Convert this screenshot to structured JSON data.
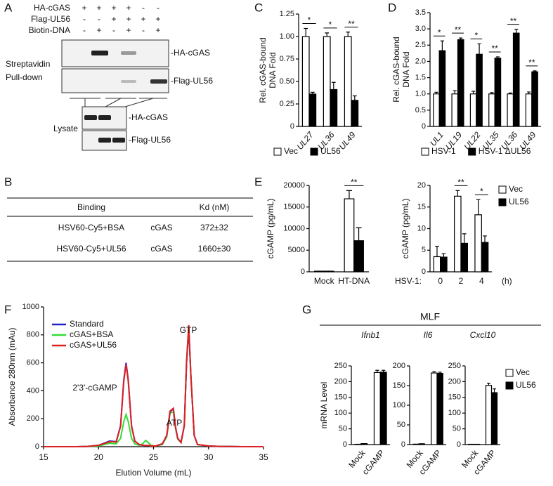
{
  "panel_labels": [
    "A",
    "B",
    "C",
    "D",
    "E",
    "F",
    "G"
  ],
  "blot": {
    "rows": [
      {
        "label": "HA-cGAS",
        "signs": [
          "+",
          "+",
          "+",
          "+",
          "-",
          "-"
        ]
      },
      {
        "label": "Flag-UL56",
        "signs": [
          "-",
          "-",
          "+",
          "+",
          "+",
          "+"
        ]
      },
      {
        "label": "Biotin-DNA",
        "signs": [
          "-",
          "+",
          "-",
          "+",
          "-",
          "+"
        ]
      }
    ],
    "pulldown_label": [
      "Streptavidin",
      "Pull-down"
    ],
    "pulldown_bands": [
      "-HA-cGAS",
      "-Flag-UL56"
    ],
    "lysate_label": "Lysate",
    "lysate_bands": [
      "-HA-cGAS",
      "-Flag-UL56"
    ]
  },
  "table": {
    "header": [
      "Binding",
      "Kd (nM)"
    ],
    "rows": [
      [
        "HSV60-Cy5+BSA",
        "cGAS",
        "372±32"
      ],
      [
        "HSV60-Cy5+UL56",
        "cGAS",
        "1660±30"
      ]
    ]
  },
  "panel_g_title": "MLF",
  "chart_data": [
    {
      "type": "bar",
      "ylabel": [
        "Rel. cGAS-bound",
        "DNA Fold"
      ],
      "italic_categories": true,
      "legend": "bottom",
      "categories": [
        "UL27",
        "UL36",
        "UL49"
      ],
      "series": [
        {
          "name": "Vec",
          "color": "#ffffff",
          "values": [
            1.0,
            1.0,
            1.0
          ],
          "errors": [
            0.09,
            0.04,
            0.05
          ]
        },
        {
          "name": "UL56",
          "color": "#000000",
          "values": [
            0.36,
            0.41,
            0.29
          ],
          "errors": [
            0.02,
            0.08,
            0.05
          ]
        }
      ],
      "significance": [
        "*",
        "*",
        "**"
      ],
      "ylim": [
        0,
        1.25
      ],
      "yticks": [
        0,
        0.25,
        {
          "value": 0.5,
          "label": "0.50"
        },
        0.75,
        {
          "value": 1,
          "label": "1.00"
        },
        1.25
      ]
    },
    {
      "type": "bar",
      "ylabel": [
        "Rel. cGAS-bound",
        "DNA Fold"
      ],
      "italic_categories": true,
      "legend": "bottom",
      "categories": [
        "UL1",
        "UL19",
        "UL22",
        "UL35",
        "UL36",
        "UL49"
      ],
      "series": [
        {
          "name": "HSV-1",
          "color": "#ffffff",
          "values": [
            1.0,
            1.0,
            1.0,
            1.0,
            1.0,
            1.0
          ],
          "errors": [
            0.05,
            0.1,
            0.08,
            0.04,
            0.03,
            0.06
          ]
        },
        {
          "name": "HSV-1 ΔUL56",
          "color": "#000000",
          "values": [
            2.33,
            2.67,
            2.22,
            2.1,
            2.87,
            1.68
          ],
          "errors": [
            0.3,
            0.05,
            0.32,
            0.04,
            0.12,
            0.03
          ]
        }
      ],
      "significance": [
        "*",
        "**",
        "*",
        "**",
        "**",
        "**"
      ],
      "ylim": [
        0,
        3.5
      ],
      "yticks": [
        0,
        0.5,
        {
          "value": 1,
          "label": "1.0"
        },
        1.5,
        {
          "value": 2,
          "label": "2.0"
        },
        2.5,
        {
          "value": 3,
          "label": "3.0"
        },
        3.5
      ]
    },
    {
      "type": "bar",
      "ylabel": [
        "cGAMP (pg/mL)"
      ],
      "categories": [
        "Mock",
        "HT-DNA"
      ],
      "series": [
        {
          "color": "#ffffff",
          "values": [
            150,
            16900
          ],
          "errors": [
            0,
            1900
          ]
        },
        {
          "color": "#000000",
          "values": [
            150,
            7200
          ],
          "errors": [
            0,
            3000
          ]
        }
      ],
      "significance": [
        null,
        "**"
      ],
      "ylim": [
        0,
        20000
      ],
      "yticks": [
        0,
        5000,
        10000,
        15000,
        20000
      ]
    },
    {
      "type": "bar",
      "ylabel": [
        "cGAMP (pg/mL)"
      ],
      "legend": "right",
      "x_prefix_label": "HSV-1:",
      "x_unit_label": "(h)",
      "categories": [
        "0",
        "2",
        "4"
      ],
      "series": [
        {
          "name": "Vec",
          "color": "#ffffff",
          "values": [
            3.5,
            17.5,
            13.2
          ],
          "errors": [
            2.4,
            1.3,
            3.5
          ]
        },
        {
          "name": "UL56",
          "color": "#000000",
          "values": [
            3.4,
            6.6,
            6.8
          ],
          "errors": [
            0.8,
            2.2,
            1.5
          ]
        }
      ],
      "significance": [
        null,
        "**",
        "*"
      ],
      "ylim": [
        0,
        20
      ],
      "yticks": [
        0,
        5,
        10,
        15,
        20
      ]
    },
    {
      "type": "line",
      "xlabel": "Elution Volume (mL)",
      "ylabel": [
        "Absorbance 280nm (mAu)"
      ],
      "legend": "top-left",
      "annotations": [
        "2'3'-cGAMP",
        "ATP",
        "GTP"
      ],
      "x": [
        15,
        16,
        17,
        18,
        19,
        20,
        20.5,
        21,
        21.3,
        21.6,
        22,
        22.3,
        22.5,
        22.7,
        23,
        23.3,
        23.7,
        24,
        24.3,
        24.5,
        24.8,
        25.2,
        25.8,
        26.2,
        26.5,
        26.8,
        27,
        27.2,
        27.5,
        27.8,
        28,
        28.2,
        28.4,
        28.7,
        29,
        30,
        31,
        32,
        33,
        34,
        35
      ],
      "series": [
        {
          "name": "Standard",
          "color": "#2222cc",
          "values": [
            0,
            0,
            0,
            0,
            2,
            10,
            25,
            40,
            38,
            35,
            150,
            480,
            600,
            480,
            150,
            40,
            15,
            10,
            8,
            8,
            5,
            5,
            20,
            80,
            250,
            270,
            140,
            60,
            30,
            150,
            600,
            850,
            500,
            80,
            15,
            5,
            2,
            1,
            0,
            0,
            0
          ]
        },
        {
          "name": "cGAS+BSA",
          "color": "#33dd33",
          "values": [
            0,
            0,
            0,
            0,
            1,
            5,
            15,
            25,
            22,
            20,
            60,
            180,
            230,
            180,
            60,
            20,
            10,
            20,
            45,
            30,
            8,
            5,
            15,
            70,
            240,
            250,
            130,
            55,
            30,
            150,
            600,
            860,
            500,
            80,
            15,
            5,
            2,
            1,
            0,
            0,
            0
          ]
        },
        {
          "name": "cGAS+UL56",
          "color": "#e02020",
          "values": [
            0,
            0,
            0,
            0,
            2,
            10,
            22,
            35,
            35,
            32,
            145,
            470,
            590,
            470,
            145,
            38,
            15,
            10,
            8,
            8,
            5,
            5,
            20,
            80,
            255,
            275,
            140,
            60,
            30,
            155,
            610,
            870,
            505,
            80,
            15,
            5,
            2,
            1,
            0,
            0,
            0
          ]
        }
      ],
      "xlim": [
        15,
        35
      ],
      "xticks": [
        15,
        20,
        25,
        30,
        35
      ],
      "ylim": [
        0,
        1000
      ],
      "yticks": [
        0,
        200,
        400,
        600,
        800,
        1000
      ]
    },
    {
      "type": "bar",
      "subtitle": "Ifnb1",
      "subtitle_italic": true,
      "ylabel": [
        "mRNA Level"
      ],
      "categories": [
        "Mock",
        "cGAMP"
      ],
      "series": [
        {
          "color": "#ffffff",
          "values": [
            1,
            229
          ],
          "errors": [
            0,
            7
          ]
        },
        {
          "color": "#000000",
          "values": [
            3,
            230
          ],
          "errors": [
            0,
            6
          ]
        }
      ],
      "ylim": [
        0,
        250
      ],
      "yticks": [
        0,
        50,
        100,
        150,
        200,
        250
      ]
    },
    {
      "type": "bar",
      "subtitle": "Il6",
      "subtitle_italic": true,
      "categories": [
        "Mock",
        "cGAMP"
      ],
      "series": [
        {
          "color": "#ffffff",
          "values": [
            1,
            182
          ],
          "errors": [
            0,
            3
          ]
        },
        {
          "color": "#000000",
          "values": [
            2,
            181
          ],
          "errors": [
            0,
            3
          ]
        }
      ],
      "ylim": [
        0,
        200
      ],
      "yticks": [
        0,
        50,
        100,
        150,
        200
      ]
    },
    {
      "type": "bar",
      "subtitle": "Cxcl10",
      "subtitle_italic": true,
      "legend": "right",
      "categories": [
        "Mock",
        "cGAMP"
      ],
      "series": [
        {
          "name": "Vec",
          "color": "#ffffff",
          "values": [
            1,
            188
          ],
          "errors": [
            0,
            7
          ]
        },
        {
          "name": "UL56",
          "color": "#000000",
          "values": [
            1,
            165
          ],
          "errors": [
            0,
            12
          ]
        }
      ],
      "ylim": [
        0,
        250
      ],
      "yticks": [
        0,
        50,
        100,
        150,
        200,
        250
      ]
    }
  ]
}
